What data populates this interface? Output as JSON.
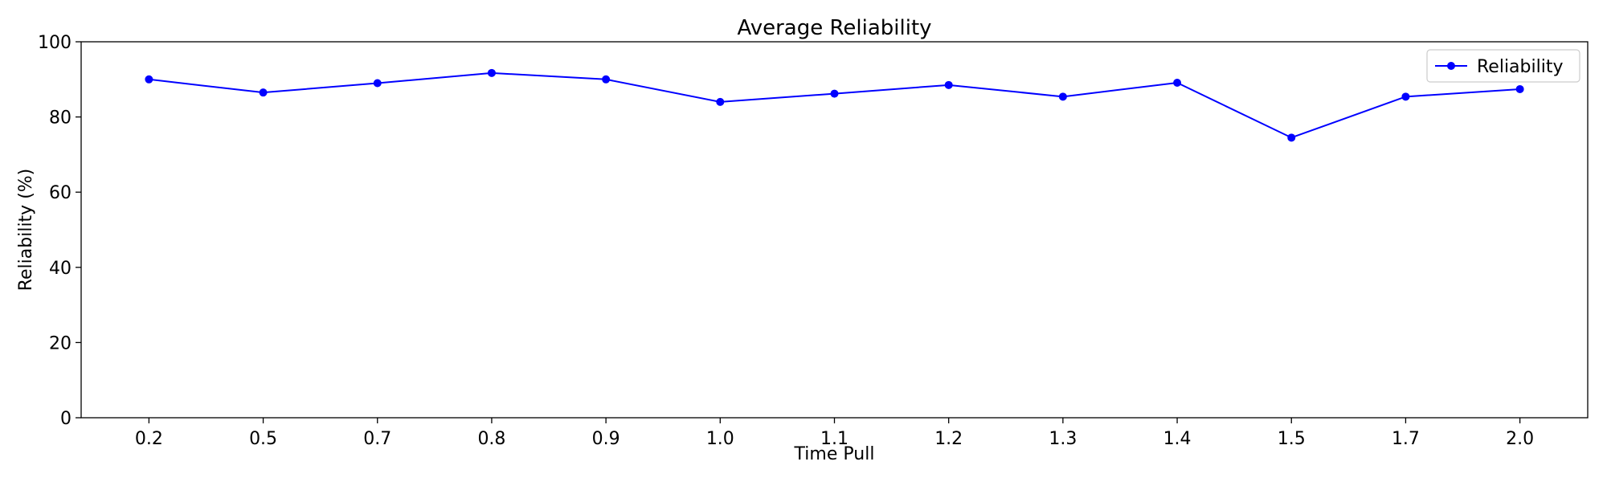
{
  "chart_data": {
    "type": "line",
    "title": "Average Reliability",
    "xlabel": "Time Pull",
    "ylabel": "Reliability (%)",
    "categories": [
      "0.2",
      "0.5",
      "0.7",
      "0.8",
      "0.9",
      "1.0",
      "1.1",
      "1.2",
      "1.3",
      "1.4",
      "1.5",
      "1.7",
      "2.0"
    ],
    "series": [
      {
        "name": "Reliability",
        "color": "#0000ff",
        "marker": "circle",
        "values": [
          90.0,
          86.5,
          89.0,
          91.7,
          90.0,
          84.0,
          86.2,
          88.5,
          85.4,
          89.1,
          74.5,
          85.4,
          87.4
        ]
      }
    ],
    "ylim": [
      0,
      100
    ],
    "yticks": [
      0,
      20,
      40,
      60,
      80,
      100
    ],
    "grid": false,
    "legend": {
      "placement": "top-right"
    }
  }
}
